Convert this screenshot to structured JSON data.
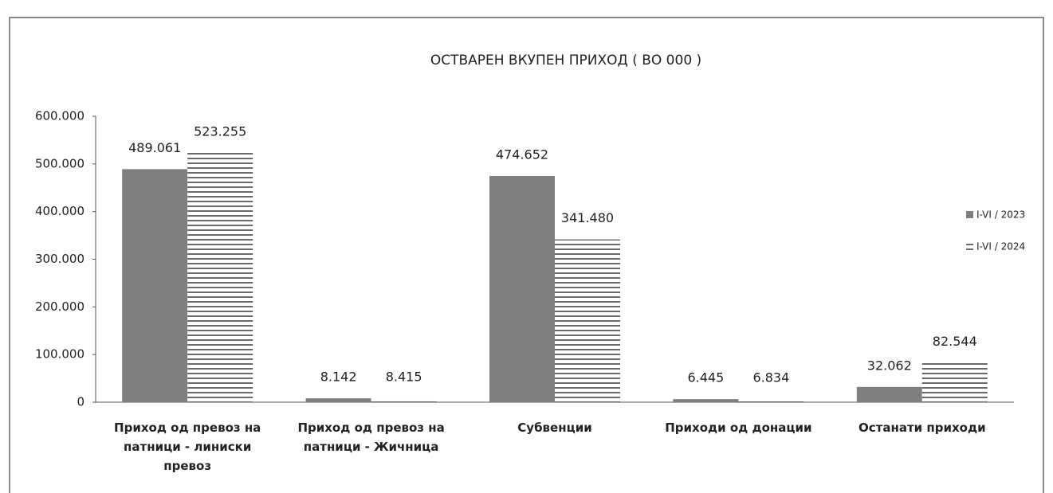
{
  "chart_data": {
    "type": "bar",
    "title": "ОСТВАРЕН ВКУПЕН ПРИХОД  ( ВО 000 )",
    "categories": [
      "Приход од превоз на патници - линиски превоз",
      "Приход од превоз на патници - Жичница",
      "Субвенции",
      "Приходи од донации",
      "Останати приходи"
    ],
    "series": [
      {
        "name": "I-VI / 2023",
        "color": "#7f7f7f",
        "hatch": false,
        "values": [
          489061,
          8142,
          474652,
          6445,
          32062
        ],
        "value_labels": [
          "489.061",
          "8.142",
          "474.652",
          "6.445",
          "32.062"
        ]
      },
      {
        "name": "I-VI / 2024",
        "color": "#444444",
        "hatch": true,
        "values": [
          523255,
          8415,
          341480,
          6834,
          82544
        ],
        "value_labels": [
          "523.255",
          "8.415",
          "341.480",
          "6.834",
          "82.544"
        ]
      }
    ],
    "ylim": [
      0,
      600000
    ],
    "yticks": [
      0,
      {
        "value": 100000,
        "label": "100.000"
      },
      {
        "value": 200000,
        "label": "200.000"
      },
      {
        "value": 300000,
        "label": "300.000"
      },
      {
        "value": 400000,
        "label": "400.000"
      },
      {
        "value": 500000,
        "label": "500.000"
      },
      {
        "value": 600000,
        "label": "600.000"
      }
    ],
    "legend": "right"
  }
}
